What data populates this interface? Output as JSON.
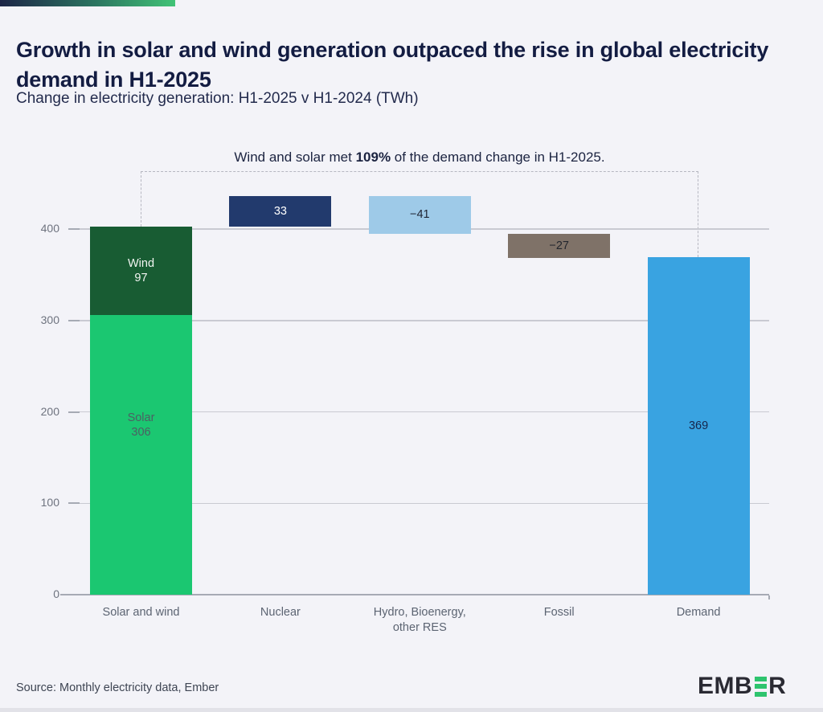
{
  "header": {
    "title": "Growth in solar and wind generation outpaced the rise in global electricity demand in H1-2025",
    "subtitle": "Change in electricity generation: H1-2025 v H1-2024 (TWh)"
  },
  "annotation": {
    "prefix": "Wind and solar met ",
    "highlight": "109%",
    "suffix": " of the demand change in H1-2025."
  },
  "footer": {
    "source": "Source: Monthly electricity data, Ember",
    "logo_left": "EMB",
    "logo_right": "R"
  },
  "colors": {
    "background": "#f3f3f8",
    "title_text": "#131c42",
    "accent_gradient": [
      "#1d2547",
      "#2c7661",
      "#41c377"
    ],
    "gridline": "#c9cad2",
    "axis_line": "#a6aab4",
    "logo_green": "#2ec46e"
  },
  "chart_data": {
    "type": "bar",
    "subtype": "waterfall",
    "title": "Growth in solar and wind generation outpaced the rise in global electricity demand in H1-2025",
    "subtitle": "Change in electricity generation: H1-2025 v H1-2024 (TWh)",
    "annotation": "Wind and solar met 109% of the demand change in H1-2025.",
    "unit": "TWh",
    "xlabel": "",
    "ylabel": "",
    "ylim": [
      0,
      400
    ],
    "yticks": [
      0,
      100,
      200,
      300,
      400
    ],
    "grid": true,
    "legend": "none",
    "categories": [
      "Solar and wind",
      "Nuclear",
      "Hydro, Bioenergy,\nother RES",
      "Fossil",
      "Demand"
    ],
    "series": [
      {
        "name": "Solar",
        "slot": 0,
        "value": 306,
        "start": 0,
        "end": 306,
        "color": "#1bc771",
        "label": "Solar\n306",
        "label_color": "#4c5f63"
      },
      {
        "name": "Wind",
        "slot": 0,
        "value": 97,
        "start": 306,
        "end": 403,
        "color": "#185c33",
        "label": "Wind\n97",
        "label_color": "#f2f5f2"
      },
      {
        "name": "Nuclear",
        "slot": 1,
        "value": 33,
        "start": 403,
        "end": 436,
        "color": "#223a6d",
        "label": "33",
        "label_color": "#ffffff"
      },
      {
        "name": "Hydro, Bioenergy, other RES",
        "slot": 2,
        "value": -41,
        "start": 436,
        "end": 395,
        "color": "#9ecae8",
        "label": "−41",
        "label_color": "#1e2433"
      },
      {
        "name": "Fossil",
        "slot": 3,
        "value": -27,
        "start": 395,
        "end": 368,
        "color": "#7f7268",
        "label": "−27",
        "label_color": "#23262e"
      },
      {
        "name": "Demand",
        "slot": 4,
        "value": 369,
        "start": 0,
        "end": 369,
        "color": "#39a3e1",
        "label": "369",
        "label_color": "#16254a"
      }
    ]
  }
}
